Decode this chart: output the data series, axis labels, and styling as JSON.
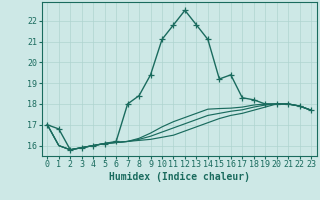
{
  "xlabel": "Humidex (Indice chaleur)",
  "bg_color": "#cde8e6",
  "line_color": "#1a6b5e",
  "grid_color": "#afd4d0",
  "x_values": [
    0,
    1,
    2,
    3,
    4,
    5,
    6,
    7,
    8,
    9,
    10,
    11,
    12,
    13,
    14,
    15,
    16,
    17,
    18,
    19,
    20,
    21,
    22,
    23
  ],
  "main_line": [
    17.0,
    16.8,
    15.8,
    15.9,
    16.0,
    16.1,
    16.2,
    18.0,
    18.4,
    19.4,
    21.1,
    21.8,
    22.5,
    21.8,
    21.1,
    19.2,
    19.4,
    18.3,
    18.2,
    18.0,
    18.0,
    18.0,
    17.9,
    17.7
  ],
  "flat_lines": [
    [
      17.0,
      16.0,
      15.8,
      15.9,
      16.0,
      16.1,
      16.15,
      16.2,
      16.25,
      16.3,
      16.4,
      16.5,
      16.7,
      16.9,
      17.1,
      17.3,
      17.45,
      17.55,
      17.7,
      17.85,
      18.0,
      18.0,
      17.9,
      17.7
    ],
    [
      17.0,
      16.0,
      15.8,
      15.9,
      16.0,
      16.1,
      16.15,
      16.2,
      16.3,
      16.45,
      16.65,
      16.85,
      17.05,
      17.25,
      17.45,
      17.55,
      17.65,
      17.72,
      17.85,
      17.95,
      18.0,
      18.0,
      17.9,
      17.7
    ],
    [
      17.0,
      16.0,
      15.8,
      15.9,
      16.0,
      16.1,
      16.15,
      16.2,
      16.35,
      16.6,
      16.9,
      17.15,
      17.35,
      17.55,
      17.75,
      17.78,
      17.8,
      17.85,
      17.95,
      18.0,
      18.0,
      18.0,
      17.9,
      17.7
    ]
  ],
  "ylim": [
    15.5,
    22.9
  ],
  "yticks": [
    16,
    17,
    18,
    19,
    20,
    21,
    22
  ],
  "xtick_labels": [
    "0",
    "1",
    "2",
    "3",
    "4",
    "5",
    "6",
    "7",
    "8",
    "9",
    "10",
    "11",
    "12",
    "13",
    "14",
    "15",
    "16",
    "17",
    "18",
    "19",
    "20",
    "21",
    "22",
    "23"
  ],
  "marker": "+",
  "markersize": 4,
  "linewidth": 1.0,
  "font_color": "#1a6b5e",
  "xlabel_fontsize": 7,
  "tick_fontsize": 6
}
